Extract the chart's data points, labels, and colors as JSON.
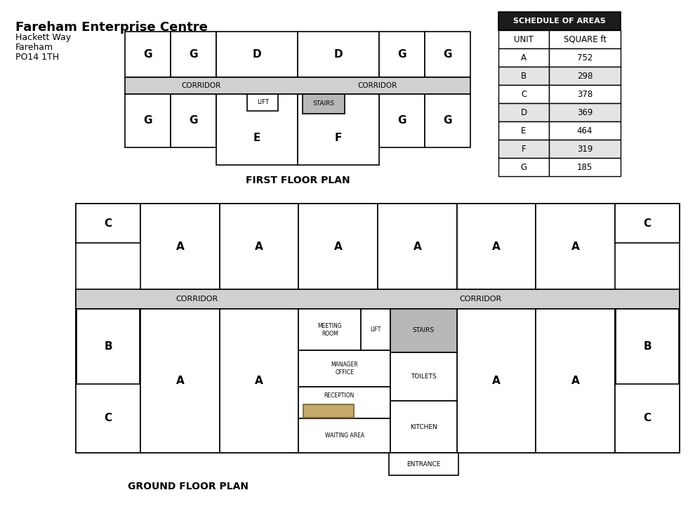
{
  "title": "Fareham Enterprise Centre",
  "address_line1": "Hackett Way",
  "address_line2": "Fareham",
  "address_line3": "PO14 1TH",
  "first_floor_label": "FIRST FLOOR PLAN",
  "ground_floor_label": "GROUND FLOOR PLAN",
  "schedule_title": "SCHEDULE OF AREAS",
  "schedule_headers": [
    "UNIT",
    "SQUARE ft"
  ],
  "schedule_rows": [
    [
      "A",
      "752"
    ],
    [
      "B",
      "298"
    ],
    [
      "C",
      "378"
    ],
    [
      "D",
      "369"
    ],
    [
      "E",
      "464"
    ],
    [
      "F",
      "319"
    ],
    [
      "G",
      "185"
    ]
  ],
  "colors": {
    "white": "#FFFFFF",
    "black": "#000000",
    "header_bg": "#1C1C1C",
    "header_text": "#FFFFFF",
    "corridor_fill": "#D0D0D0",
    "stairs_fill": "#B8B8B8",
    "reception_fill": "#C4A96A",
    "table_alt": "#E4E4E4"
  },
  "bg_color": "#FFFFFF"
}
